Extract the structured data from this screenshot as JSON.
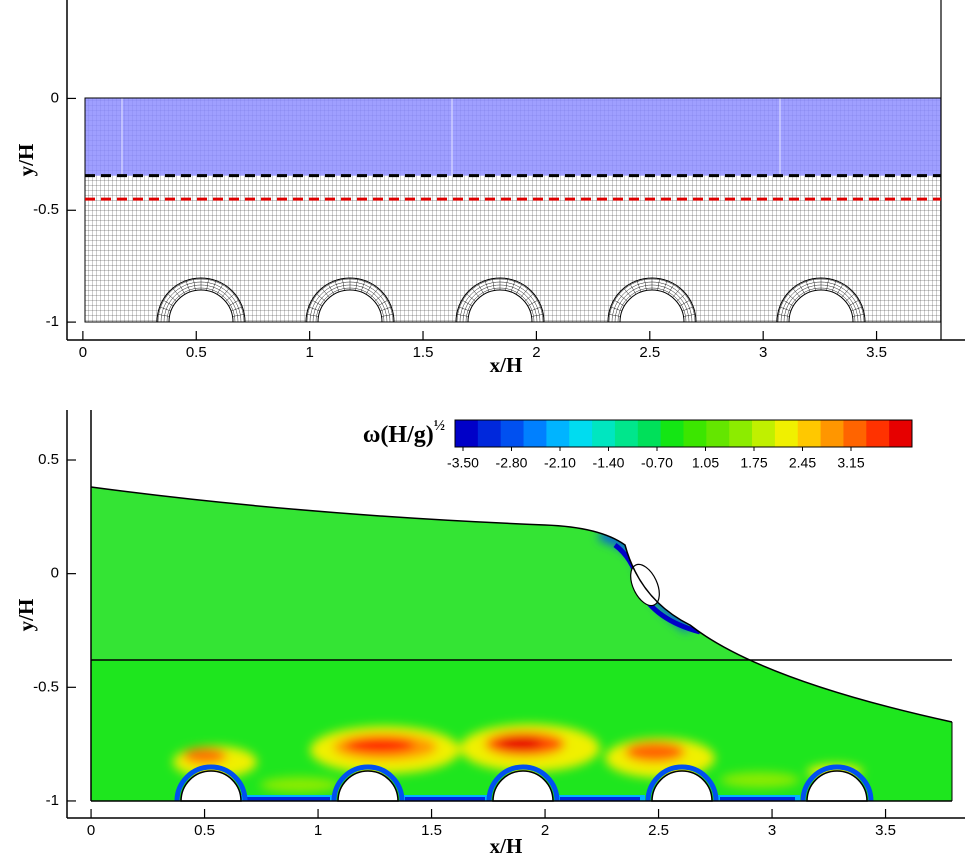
{
  "chart_data": [
    {
      "type": "mesh",
      "xlabel": "x/H",
      "ylabel": "y/H",
      "xlim": [
        -0.07,
        3.89
      ],
      "ylim": [
        -1.08,
        0.44
      ],
      "xticks": [
        0,
        0.5,
        1,
        1.5,
        2,
        2.5,
        3,
        3.5
      ],
      "yticks": [
        -1,
        -0.5,
        0
      ],
      "region_color": "#8e8eff",
      "lines": [
        {
          "y": -0.345,
          "color": "#000000"
        },
        {
          "y": -0.45,
          "color": "#e00000"
        }
      ]
    },
    {
      "type": "contour",
      "xlabel": "x/H",
      "ylabel": "y/H",
      "xlim": [
        -0.106,
        3.85
      ],
      "ylim": [
        -1.075,
        0.72
      ],
      "xticks": [
        0,
        0.5,
        1,
        1.5,
        2,
        2.5,
        3,
        3.5
      ],
      "yticks": [
        -1,
        -0.5,
        0,
        0.5
      ],
      "colorbar": {
        "title": "ω(H/g)",
        "title_sup": "½",
        "colors": [
          "#0000c8",
          "#0028dc",
          "#0050f0",
          "#0080ff",
          "#00b4ff",
          "#00dcf0",
          "#00e6c0",
          "#00e68c",
          "#00e05a",
          "#14e614",
          "#3ce600",
          "#64e600",
          "#8cec00",
          "#c0f000",
          "#f0f000",
          "#ffc800",
          "#ff9600",
          "#ff6400",
          "#ff3200",
          "#e60000"
        ],
        "ticks": [
          {
            "value": -3.5,
            "label": "-3.50"
          },
          {
            "value": -2.8,
            "label": "-2.80"
          },
          {
            "value": -2.1,
            "label": "-2.10"
          },
          {
            "value": -1.4,
            "label": "-1.40"
          },
          {
            "value": -0.7,
            "label": "-0.70"
          },
          1.05,
          1.75,
          2.45,
          3.15
        ]
      }
    }
  ]
}
